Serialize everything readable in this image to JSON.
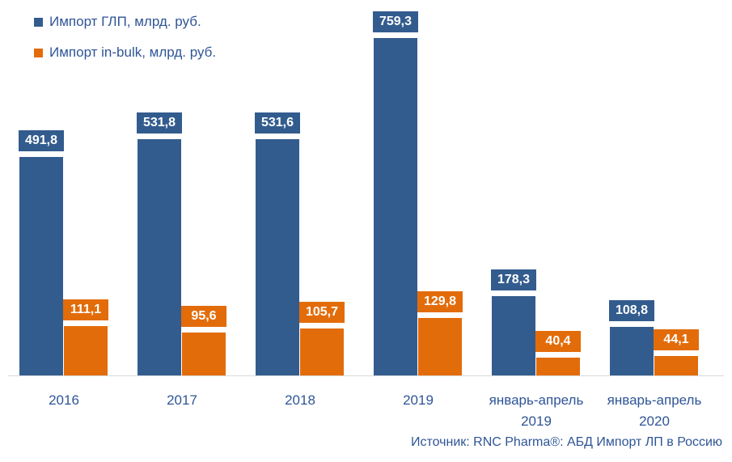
{
  "legend": {
    "items": [
      {
        "label": "Импорт ГЛП, млрд. руб.",
        "color": "#335c8e"
      },
      {
        "label": "Импорт in-bulk, млрд. руб.",
        "color": "#e36c0a"
      }
    ]
  },
  "source": "Источник: RNC Pharma®: АБД Импорт ЛП в Россию",
  "chart_data": {
    "type": "bar",
    "title": "",
    "xlabel": "",
    "ylabel": "",
    "categories": [
      "2016",
      "2017",
      "2018",
      "2019",
      "январь-апрель 2019",
      "январь-апрель 2020"
    ],
    "category_lines": [
      [
        "2016"
      ],
      [
        "2017"
      ],
      [
        "2018"
      ],
      [
        "2019"
      ],
      [
        "январь-апрель",
        "2019"
      ],
      [
        "январь-апрель",
        "2020"
      ]
    ],
    "series": [
      {
        "name": "Импорт ГЛП, млрд. руб.",
        "color": "#335c8e",
        "values": [
          491.8,
          531.8,
          531.6,
          759.3,
          178.3,
          108.8
        ],
        "labels": [
          "491,8",
          "531,8",
          "531,6",
          "759,3",
          "178,3",
          "108,8"
        ]
      },
      {
        "name": "Импорт in-bulk, млрд. руб.",
        "color": "#e36c0a",
        "values": [
          111.1,
          95.6,
          105.7,
          129.8,
          40.4,
          44.1
        ],
        "labels": [
          "111,1",
          "95,6",
          "105,7",
          "129,8",
          "40,4",
          "44,1"
        ]
      }
    ],
    "ylim": [
      0,
      800
    ],
    "grid": false,
    "legend_position": "top-left",
    "data_labels": true
  }
}
